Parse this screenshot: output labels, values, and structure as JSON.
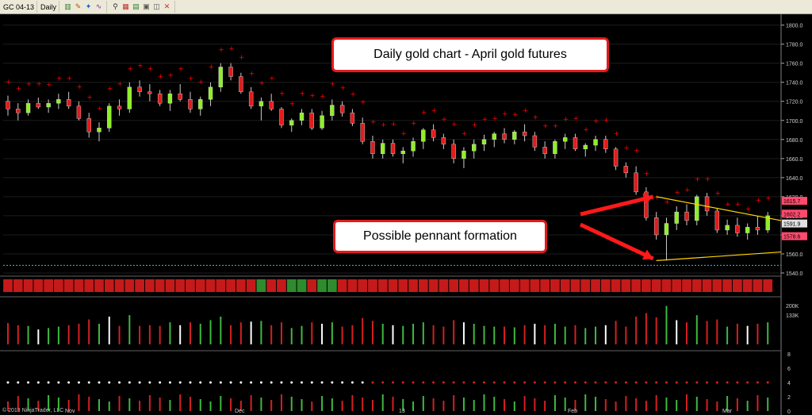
{
  "toolbar": {
    "instrument": "GC 04-13",
    "interval": "Daily",
    "icons": [
      "bars-icon",
      "pencil-icon",
      "draw-icon",
      "indicator-icon",
      "zoom-icon",
      "properties-icon",
      "data-box-icon",
      "grid-icon",
      "window-icon",
      "close-icon"
    ]
  },
  "annotations": {
    "title": "Daily gold chart - April gold futures",
    "pennant": "Possible pennant formation"
  },
  "copyright": "© 2013 NinjaTrader, LLC",
  "colors": {
    "background": "#000000",
    "up_candle": "#90ee2a",
    "down_candle": "#e31b1b",
    "sar_dot": "#ff0000",
    "pennant_line": "#ffd400",
    "arrow": "#ff1a1a"
  },
  "chart_data": {
    "type": "candlestick",
    "x_labels": [
      "Nov",
      "Dec",
      "13",
      "Feb",
      "Mar"
    ],
    "price_axis": {
      "ticks": [
        "1800.0",
        "1780.0",
        "1760.0",
        "1740.0",
        "1720.0",
        "1700.0",
        "1680.0",
        "1660.0",
        "1640.0",
        "1620.0",
        "1600.0",
        "1580.0",
        "1560.0",
        "1540.0"
      ],
      "ylim": [
        1540,
        1808
      ],
      "price_markers": [
        "1615.7",
        "1602.2",
        "1591.9",
        "1578.6"
      ]
    },
    "volume_axis": {
      "ticks": [
        "200K",
        "133K"
      ]
    },
    "oscillator_axis": {
      "ticks": [
        "8",
        "6",
        "4",
        "2",
        "0"
      ]
    },
    "pennant": {
      "upper_start": 1620,
      "upper_end": 1595,
      "lower_start": 1553,
      "lower_end": 1562
    },
    "candles": [
      [
        1720,
        1726,
        1705,
        1712
      ],
      [
        1712,
        1718,
        1700,
        1708
      ],
      [
        1708,
        1722,
        1705,
        1718
      ],
      [
        1718,
        1724,
        1712,
        1714
      ],
      [
        1714,
        1722,
        1708,
        1718
      ],
      [
        1718,
        1728,
        1712,
        1722
      ],
      [
        1722,
        1730,
        1712,
        1715
      ],
      [
        1715,
        1720,
        1700,
        1702
      ],
      [
        1702,
        1708,
        1682,
        1688
      ],
      [
        1688,
        1698,
        1678,
        1692
      ],
      [
        1692,
        1718,
        1688,
        1715
      ],
      [
        1715,
        1722,
        1705,
        1712
      ],
      [
        1712,
        1740,
        1708,
        1735
      ],
      [
        1735,
        1742,
        1725,
        1730
      ],
      [
        1730,
        1738,
        1720,
        1728
      ],
      [
        1728,
        1732,
        1715,
        1718
      ],
      [
        1718,
        1732,
        1710,
        1728
      ],
      [
        1728,
        1738,
        1720,
        1722
      ],
      [
        1722,
        1730,
        1708,
        1712
      ],
      [
        1712,
        1725,
        1705,
        1722
      ],
      [
        1722,
        1740,
        1715,
        1735
      ],
      [
        1735,
        1760,
        1730,
        1756
      ],
      [
        1756,
        1760,
        1742,
        1746
      ],
      [
        1746,
        1750,
        1728,
        1730
      ],
      [
        1730,
        1735,
        1712,
        1715
      ],
      [
        1715,
        1724,
        1700,
        1720
      ],
      [
        1720,
        1728,
        1710,
        1712
      ],
      [
        1712,
        1714,
        1692,
        1695
      ],
      [
        1695,
        1702,
        1688,
        1700
      ],
      [
        1700,
        1712,
        1695,
        1708
      ],
      [
        1708,
        1712,
        1690,
        1692
      ],
      [
        1692,
        1710,
        1690,
        1705
      ],
      [
        1705,
        1722,
        1700,
        1716
      ],
      [
        1716,
        1720,
        1704,
        1708
      ],
      [
        1708,
        1712,
        1694,
        1697
      ],
      [
        1697,
        1703,
        1675,
        1678
      ],
      [
        1678,
        1684,
        1660,
        1665
      ],
      [
        1665,
        1680,
        1660,
        1676
      ],
      [
        1676,
        1680,
        1662,
        1665
      ],
      [
        1665,
        1672,
        1655,
        1668
      ],
      [
        1668,
        1682,
        1662,
        1678
      ],
      [
        1678,
        1692,
        1670,
        1690
      ],
      [
        1690,
        1696,
        1678,
        1682
      ],
      [
        1682,
        1686,
        1670,
        1675
      ],
      [
        1675,
        1680,
        1655,
        1660
      ],
      [
        1660,
        1672,
        1650,
        1668
      ],
      [
        1668,
        1680,
        1660,
        1675
      ],
      [
        1675,
        1685,
        1668,
        1680
      ],
      [
        1680,
        1688,
        1672,
        1686
      ],
      [
        1686,
        1692,
        1676,
        1680
      ],
      [
        1680,
        1690,
        1675,
        1688
      ],
      [
        1688,
        1696,
        1678,
        1684
      ],
      [
        1684,
        1688,
        1668,
        1672
      ],
      [
        1672,
        1678,
        1660,
        1665
      ],
      [
        1665,
        1680,
        1660,
        1678
      ],
      [
        1678,
        1686,
        1670,
        1682
      ],
      [
        1682,
        1686,
        1668,
        1670
      ],
      [
        1670,
        1676,
        1662,
        1674
      ],
      [
        1674,
        1684,
        1668,
        1680
      ],
      [
        1680,
        1684,
        1666,
        1670
      ],
      [
        1670,
        1672,
        1648,
        1652
      ],
      [
        1652,
        1656,
        1640,
        1645
      ],
      [
        1645,
        1652,
        1622,
        1625
      ],
      [
        1625,
        1630,
        1595,
        1598
      ],
      [
        1598,
        1604,
        1575,
        1580
      ],
      [
        1580,
        1598,
        1553,
        1592
      ],
      [
        1592,
        1610,
        1585,
        1604
      ],
      [
        1604,
        1612,
        1590,
        1595
      ],
      [
        1595,
        1622,
        1590,
        1620
      ],
      [
        1620,
        1624,
        1600,
        1605
      ],
      [
        1605,
        1608,
        1582,
        1585
      ],
      [
        1585,
        1596,
        1580,
        1590
      ],
      [
        1590,
        1598,
        1578,
        1582
      ],
      [
        1582,
        1592,
        1575,
        1588
      ],
      [
        1588,
        1600,
        1580,
        1585
      ],
      [
        1585,
        1604,
        1582,
        1600
      ]
    ]
  }
}
